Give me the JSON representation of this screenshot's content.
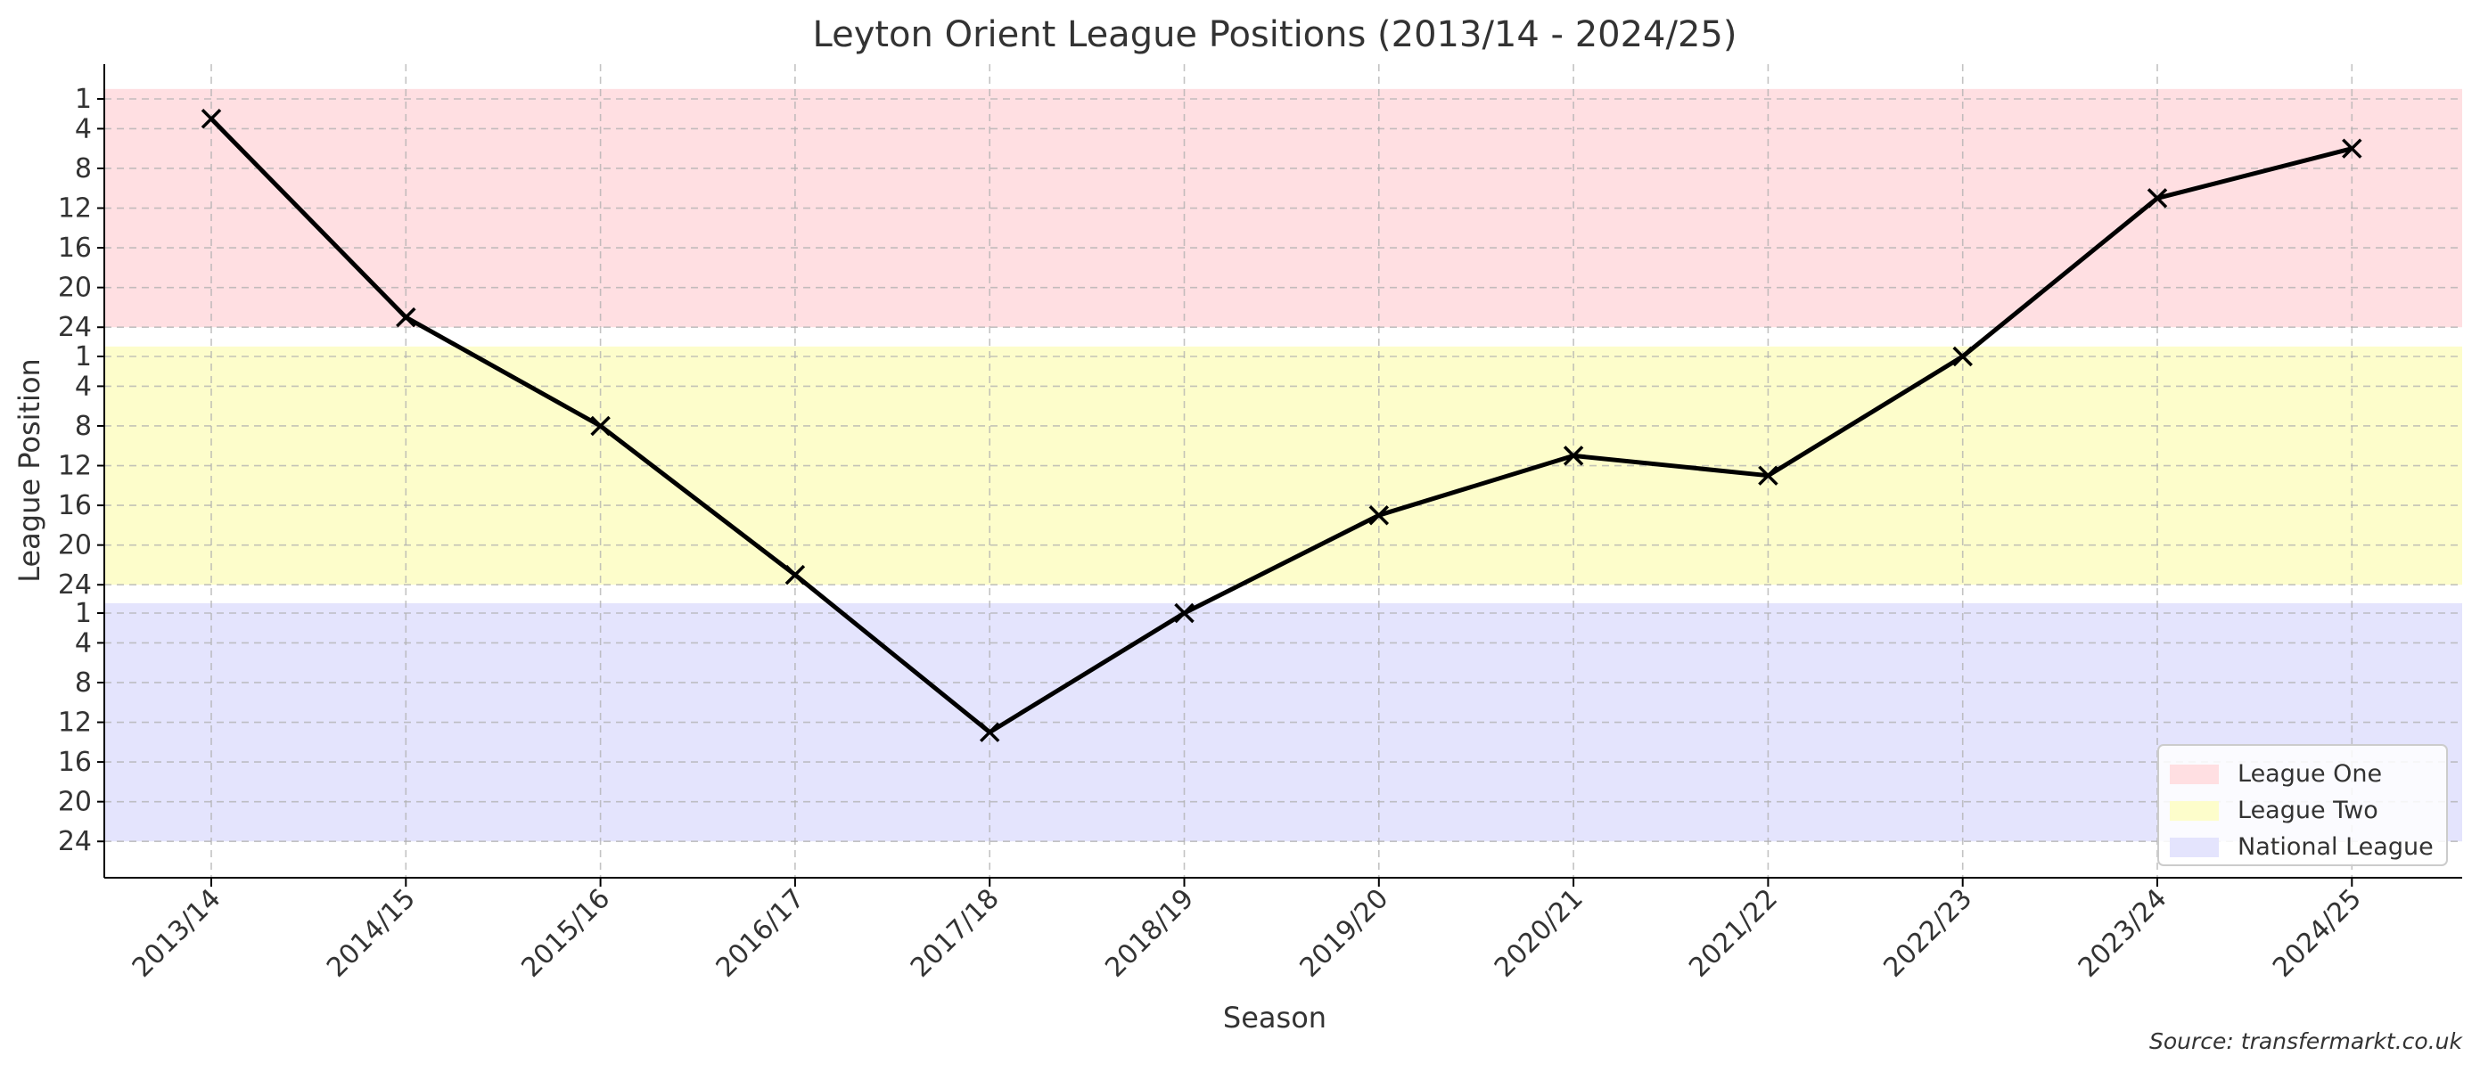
{
  "chart_data": {
    "type": "line",
    "title": "Leyton Orient League Positions (2013/14 - 2024/25)",
    "xlabel": "Season",
    "ylabel": "League Position",
    "source_note": "Source: transfermarkt.co.uk",
    "categories": [
      "2013/14",
      "2014/15",
      "2015/16",
      "2016/17",
      "2017/18",
      "2018/19",
      "2019/20",
      "2020/21",
      "2021/22",
      "2022/23",
      "2023/24",
      "2024/25"
    ],
    "series": [
      {
        "division": [
          "League One",
          "League One",
          "League Two",
          "League Two",
          "National League",
          "National League",
          "League Two",
          "League Two",
          "League Two",
          "League Two",
          "League One",
          "League One"
        ],
        "positions": [
          3,
          23,
          8,
          23,
          13,
          1,
          17,
          11,
          13,
          1,
          11,
          6
        ],
        "color": "#000000",
        "marker": "x"
      }
    ],
    "bands": [
      {
        "name": "League One",
        "color": "#ffdfe2"
      },
      {
        "name": "League Two",
        "color": "#fdfdcb"
      },
      {
        "name": "National League",
        "color": "#e4e4fd"
      }
    ],
    "y_tick_labels": [
      "1",
      "4",
      "8",
      "12",
      "16",
      "20",
      "24"
    ],
    "grid": true,
    "legend_placement": "lower-right"
  }
}
